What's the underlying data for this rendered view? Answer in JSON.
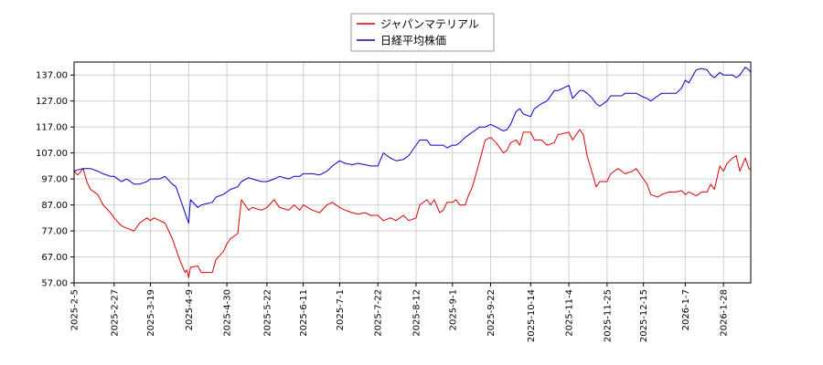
{
  "colors": {
    "series_a": "#dd0000",
    "series_b": "#0000cc",
    "grid": "#d0d0d0",
    "axis": "#000000"
  },
  "chart_data": {
    "type": "line",
    "title": "",
    "xlabel": "",
    "ylabel": "",
    "grid": true,
    "legend_position": "top-center",
    "ylim": [
      57,
      142
    ],
    "xlim": [
      "2025-02-05",
      "2026-02-12"
    ],
    "y_ticks": [
      57,
      67,
      77,
      87,
      97,
      107,
      117,
      127,
      137
    ],
    "y_tick_labels": [
      "57.00",
      "67.00",
      "77.00",
      "87.00",
      "97.00",
      "107.00",
      "117.00",
      "127.00",
      "137.00"
    ],
    "x_ticks": [
      "2025-2-5",
      "2025-2-27",
      "2025-3-19",
      "2025-4-9",
      "2025-4-30",
      "2025-5-22",
      "2025-6-11",
      "2025-7-1",
      "2025-7-22",
      "2025-8-12",
      "2025-9-1",
      "2025-9-22",
      "2025-10-14",
      "2025-11-4",
      "2025-11-25",
      "2025-12-15",
      "2026-1-7",
      "2026-1-28"
    ],
    "series": [
      {
        "name": "ジャパンマテリアル",
        "color": "#dd0000",
        "points": [
          [
            "2025-02-05",
            100
          ],
          [
            "2025-02-07",
            98.5
          ],
          [
            "2025-02-10",
            101
          ],
          [
            "2025-02-12",
            96
          ],
          [
            "2025-02-14",
            93
          ],
          [
            "2025-02-18",
            91
          ],
          [
            "2025-02-21",
            87
          ],
          [
            "2025-02-25",
            84
          ],
          [
            "2025-02-27",
            82
          ],
          [
            "2025-03-03",
            79
          ],
          [
            "2025-03-06",
            78
          ],
          [
            "2025-03-10",
            77
          ],
          [
            "2025-03-13",
            80
          ],
          [
            "2025-03-17",
            82
          ],
          [
            "2025-03-19",
            81
          ],
          [
            "2025-03-21",
            82
          ],
          [
            "2025-03-24",
            81
          ],
          [
            "2025-03-27",
            80
          ],
          [
            "2025-03-31",
            74
          ],
          [
            "2025-04-02",
            70
          ],
          [
            "2025-04-04",
            66
          ],
          [
            "2025-04-07",
            61
          ],
          [
            "2025-04-08",
            62
          ],
          [
            "2025-04-09",
            59
          ],
          [
            "2025-04-10",
            63
          ],
          [
            "2025-04-14",
            63.5
          ],
          [
            "2025-04-16",
            61
          ],
          [
            "2025-04-22",
            61
          ],
          [
            "2025-04-24",
            66
          ],
          [
            "2025-04-28",
            69
          ],
          [
            "2025-04-30",
            72
          ],
          [
            "2025-05-02",
            74
          ],
          [
            "2025-05-06",
            76
          ],
          [
            "2025-05-08",
            89
          ],
          [
            "2025-05-12",
            85
          ],
          [
            "2025-05-14",
            86
          ],
          [
            "2025-05-19",
            85
          ],
          [
            "2025-05-22",
            86
          ],
          [
            "2025-05-26",
            89
          ],
          [
            "2025-05-29",
            86
          ],
          [
            "2025-06-03",
            85
          ],
          [
            "2025-06-06",
            87
          ],
          [
            "2025-06-09",
            85
          ],
          [
            "2025-06-11",
            87
          ],
          [
            "2025-06-16",
            85
          ],
          [
            "2025-06-20",
            84
          ],
          [
            "2025-06-24",
            87
          ],
          [
            "2025-06-27",
            88
          ],
          [
            "2025-07-01",
            86
          ],
          [
            "2025-07-04",
            85
          ],
          [
            "2025-07-08",
            84
          ],
          [
            "2025-07-11",
            83.5
          ],
          [
            "2025-07-15",
            84
          ],
          [
            "2025-07-18",
            83
          ],
          [
            "2025-07-22",
            83
          ],
          [
            "2025-07-25",
            81
          ],
          [
            "2025-07-29",
            82
          ],
          [
            "2025-08-01",
            81
          ],
          [
            "2025-08-05",
            83
          ],
          [
            "2025-08-08",
            81
          ],
          [
            "2025-08-12",
            82
          ],
          [
            "2025-08-14",
            87
          ],
          [
            "2025-08-18",
            89
          ],
          [
            "2025-08-20",
            87
          ],
          [
            "2025-08-22",
            89
          ],
          [
            "2025-08-25",
            84
          ],
          [
            "2025-08-27",
            85
          ],
          [
            "2025-08-29",
            88
          ],
          [
            "2025-09-01",
            88
          ],
          [
            "2025-09-03",
            89
          ],
          [
            "2025-09-05",
            87
          ],
          [
            "2025-09-08",
            87
          ],
          [
            "2025-09-10",
            91
          ],
          [
            "2025-09-12",
            94
          ],
          [
            "2025-09-16",
            104
          ],
          [
            "2025-09-19",
            112
          ],
          [
            "2025-09-22",
            113
          ],
          [
            "2025-09-25",
            111
          ],
          [
            "2025-09-29",
            107
          ],
          [
            "2025-10-01",
            108
          ],
          [
            "2025-10-03",
            111
          ],
          [
            "2025-10-06",
            112
          ],
          [
            "2025-10-08",
            110
          ],
          [
            "2025-10-10",
            115
          ],
          [
            "2025-10-14",
            115
          ],
          [
            "2025-10-16",
            112
          ],
          [
            "2025-10-20",
            112
          ],
          [
            "2025-10-23",
            110
          ],
          [
            "2025-10-27",
            111
          ],
          [
            "2025-10-29",
            114
          ],
          [
            "2025-11-04",
            115
          ],
          [
            "2025-11-06",
            112
          ],
          [
            "2025-11-10",
            116
          ],
          [
            "2025-11-12",
            114
          ],
          [
            "2025-11-14",
            106
          ],
          [
            "2025-11-17",
            99
          ],
          [
            "2025-11-19",
            94
          ],
          [
            "2025-11-21",
            96
          ],
          [
            "2025-11-25",
            96
          ],
          [
            "2025-11-27",
            99
          ],
          [
            "2025-12-01",
            101
          ],
          [
            "2025-12-03",
            100
          ],
          [
            "2025-12-05",
            99
          ],
          [
            "2025-12-09",
            100
          ],
          [
            "2025-12-11",
            101
          ],
          [
            "2025-12-15",
            97
          ],
          [
            "2025-12-17",
            95
          ],
          [
            "2025-12-19",
            91
          ],
          [
            "2025-12-23",
            90
          ],
          [
            "2025-12-25",
            91
          ],
          [
            "2025-12-29",
            92
          ],
          [
            "2026-01-02",
            92
          ],
          [
            "2026-01-05",
            92.5
          ],
          [
            "2026-01-07",
            91
          ],
          [
            "2026-01-09",
            92
          ],
          [
            "2026-01-13",
            90.5
          ],
          [
            "2026-01-16",
            92
          ],
          [
            "2026-01-19",
            92
          ],
          [
            "2026-01-21",
            95
          ],
          [
            "2026-01-23",
            93
          ],
          [
            "2026-01-26",
            102
          ],
          [
            "2026-01-28",
            100
          ],
          [
            "2026-01-30",
            103
          ],
          [
            "2026-02-02",
            105
          ],
          [
            "2026-02-04",
            106
          ],
          [
            "2026-02-06",
            100
          ],
          [
            "2026-02-09",
            105
          ],
          [
            "2026-02-11",
            101
          ],
          [
            "2026-02-12",
            100.5
          ]
        ]
      },
      {
        "name": "日経平均株価",
        "color": "#0000cc",
        "points": [
          [
            "2025-02-05",
            100
          ],
          [
            "2025-02-07",
            100.5
          ],
          [
            "2025-02-10",
            101
          ],
          [
            "2025-02-14",
            101
          ],
          [
            "2025-02-18",
            100
          ],
          [
            "2025-02-21",
            99
          ],
          [
            "2025-02-25",
            98
          ],
          [
            "2025-02-27",
            98
          ],
          [
            "2025-03-03",
            96
          ],
          [
            "2025-03-06",
            97
          ],
          [
            "2025-03-10",
            95
          ],
          [
            "2025-03-13",
            95
          ],
          [
            "2025-03-17",
            96
          ],
          [
            "2025-03-19",
            97
          ],
          [
            "2025-03-21",
            97
          ],
          [
            "2025-03-24",
            97
          ],
          [
            "2025-03-27",
            98
          ],
          [
            "2025-03-31",
            95
          ],
          [
            "2025-04-02",
            94
          ],
          [
            "2025-04-04",
            90
          ],
          [
            "2025-04-07",
            84
          ],
          [
            "2025-04-08",
            82
          ],
          [
            "2025-04-09",
            80
          ],
          [
            "2025-04-10",
            89
          ],
          [
            "2025-04-14",
            86
          ],
          [
            "2025-04-16",
            87
          ],
          [
            "2025-04-22",
            88
          ],
          [
            "2025-04-24",
            90
          ],
          [
            "2025-04-28",
            91
          ],
          [
            "2025-04-30",
            92
          ],
          [
            "2025-05-02",
            93
          ],
          [
            "2025-05-06",
            94
          ],
          [
            "2025-05-08",
            96
          ],
          [
            "2025-05-12",
            97.5
          ],
          [
            "2025-05-14",
            97
          ],
          [
            "2025-05-19",
            96
          ],
          [
            "2025-05-22",
            96
          ],
          [
            "2025-05-26",
            97
          ],
          [
            "2025-05-29",
            98
          ],
          [
            "2025-06-03",
            97
          ],
          [
            "2025-06-06",
            98
          ],
          [
            "2025-06-09",
            98
          ],
          [
            "2025-06-11",
            99
          ],
          [
            "2025-06-16",
            99
          ],
          [
            "2025-06-20",
            98.5
          ],
          [
            "2025-06-24",
            100
          ],
          [
            "2025-06-27",
            102
          ],
          [
            "2025-07-01",
            104
          ],
          [
            "2025-07-04",
            103
          ],
          [
            "2025-07-08",
            102.5
          ],
          [
            "2025-07-11",
            103
          ],
          [
            "2025-07-15",
            102.5
          ],
          [
            "2025-07-18",
            102
          ],
          [
            "2025-07-22",
            102
          ],
          [
            "2025-07-25",
            107
          ],
          [
            "2025-07-29",
            105
          ],
          [
            "2025-08-01",
            104
          ],
          [
            "2025-08-05",
            104.5
          ],
          [
            "2025-08-08",
            106
          ],
          [
            "2025-08-12",
            110
          ],
          [
            "2025-08-14",
            112
          ],
          [
            "2025-08-18",
            112
          ],
          [
            "2025-08-20",
            110
          ],
          [
            "2025-08-22",
            110
          ],
          [
            "2025-08-25",
            110
          ],
          [
            "2025-08-27",
            110
          ],
          [
            "2025-08-29",
            109
          ],
          [
            "2025-09-01",
            110
          ],
          [
            "2025-09-03",
            110
          ],
          [
            "2025-09-05",
            111
          ],
          [
            "2025-09-08",
            113
          ],
          [
            "2025-09-10",
            114
          ],
          [
            "2025-09-12",
            115
          ],
          [
            "2025-09-16",
            117
          ],
          [
            "2025-09-19",
            117
          ],
          [
            "2025-09-22",
            118
          ],
          [
            "2025-09-25",
            117
          ],
          [
            "2025-09-29",
            115.5
          ],
          [
            "2025-10-01",
            116
          ],
          [
            "2025-10-03",
            118
          ],
          [
            "2025-10-06",
            123
          ],
          [
            "2025-10-08",
            124
          ],
          [
            "2025-10-10",
            122
          ],
          [
            "2025-10-14",
            121
          ],
          [
            "2025-10-16",
            124
          ],
          [
            "2025-10-20",
            126
          ],
          [
            "2025-10-23",
            127
          ],
          [
            "2025-10-27",
            131
          ],
          [
            "2025-10-29",
            131
          ],
          [
            "2025-11-04",
            133
          ],
          [
            "2025-11-06",
            128
          ],
          [
            "2025-11-10",
            131
          ],
          [
            "2025-11-12",
            131
          ],
          [
            "2025-11-14",
            130
          ],
          [
            "2025-11-17",
            128
          ],
          [
            "2025-11-19",
            126
          ],
          [
            "2025-11-21",
            125
          ],
          [
            "2025-11-25",
            127
          ],
          [
            "2025-11-27",
            129
          ],
          [
            "2025-12-01",
            129
          ],
          [
            "2025-12-03",
            129
          ],
          [
            "2025-12-05",
            130
          ],
          [
            "2025-12-09",
            130
          ],
          [
            "2025-12-11",
            130
          ],
          [
            "2025-12-15",
            128.5
          ],
          [
            "2025-12-17",
            128
          ],
          [
            "2025-12-19",
            127
          ],
          [
            "2025-12-23",
            129
          ],
          [
            "2025-12-25",
            130
          ],
          [
            "2025-12-29",
            130
          ],
          [
            "2026-01-02",
            130
          ],
          [
            "2026-01-05",
            132
          ],
          [
            "2026-01-07",
            135
          ],
          [
            "2026-01-09",
            134
          ],
          [
            "2026-01-13",
            139
          ],
          [
            "2026-01-16",
            139.5
          ],
          [
            "2026-01-19",
            139
          ],
          [
            "2026-01-21",
            137
          ],
          [
            "2026-01-23",
            136
          ],
          [
            "2026-01-26",
            138
          ],
          [
            "2026-01-28",
            137
          ],
          [
            "2026-01-30",
            137
          ],
          [
            "2026-02-02",
            137
          ],
          [
            "2026-02-04",
            136
          ],
          [
            "2026-02-06",
            137
          ],
          [
            "2026-02-09",
            140
          ],
          [
            "2026-02-11",
            139
          ],
          [
            "2026-02-12",
            138
          ]
        ]
      }
    ]
  }
}
